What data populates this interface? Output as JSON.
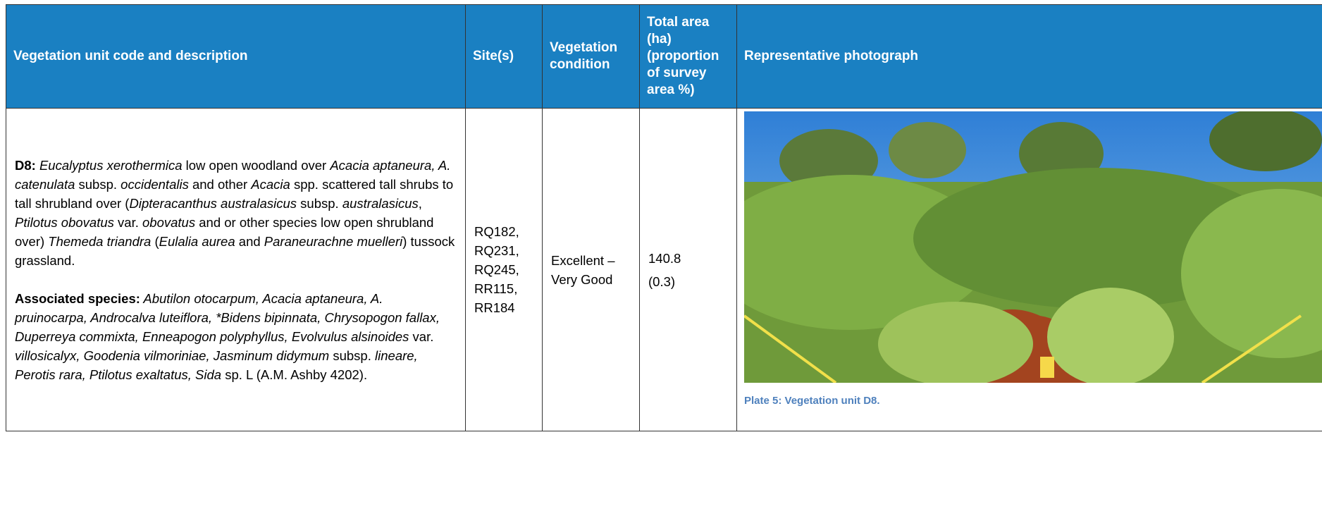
{
  "header": {
    "columns": [
      "Vegetation unit code and description",
      "Site(s)",
      "Vegetation condition",
      "Total area (ha) (proportion of survey area %)",
      "Representative photograph"
    ]
  },
  "row": {
    "description": [
      {
        "runs": [
          {
            "text": "D8:",
            "style": "bold"
          },
          {
            "text": " Eucalyptus xerothermica",
            "style": "italic"
          },
          {
            "text": " low open woodland over ",
            "style": "normal"
          },
          {
            "text": "Acacia aptaneura, A. catenulata",
            "style": "italic"
          },
          {
            "text": " subsp. ",
            "style": "normal"
          },
          {
            "text": "occidentalis",
            "style": "italic"
          },
          {
            "text": " and other ",
            "style": "normal"
          },
          {
            "text": "Acacia",
            "style": "italic"
          },
          {
            "text": " spp. scattered tall shrubs to tall shrubland over (",
            "style": "normal"
          },
          {
            "text": "Dipteracanthus australasicus",
            "style": "italic"
          },
          {
            "text": " subsp. ",
            "style": "normal"
          },
          {
            "text": "australasicus",
            "style": "italic"
          },
          {
            "text": ", ",
            "style": "normal"
          },
          {
            "text": "Ptilotus obovatus",
            "style": "italic"
          },
          {
            "text": " var. ",
            "style": "normal"
          },
          {
            "text": "obovatus",
            "style": "italic"
          },
          {
            "text": " and or other species low open shrubland over) ",
            "style": "normal"
          },
          {
            "text": "Themeda triandra",
            "style": "italic"
          },
          {
            "text": " (",
            "style": "normal"
          },
          {
            "text": "Eulalia aurea",
            "style": "italic"
          },
          {
            "text": " and ",
            "style": "normal"
          },
          {
            "text": "Paraneurachne muelleri",
            "style": "italic"
          },
          {
            "text": ") tussock grassland.",
            "style": "normal"
          }
        ]
      },
      {
        "runs": [
          {
            "text": "Associated species:",
            "style": "bold"
          },
          {
            "text": " Abutilon otocarpum, Acacia aptaneura, A. pruinocarpa, Androcalva luteiflora, *Bidens bipinnata, Chrysopogon fallax, Duperreya commixta, Enneapogon polyphyllus, Evolvulus alsinoides",
            "style": "italic"
          },
          {
            "text": " var. ",
            "style": "normal"
          },
          {
            "text": "villosicalyx, Goodenia vilmoriniae, Jasminum didymum",
            "style": "italic"
          },
          {
            "text": " subsp. ",
            "style": "normal"
          },
          {
            "text": "lineare, Perotis rara, Ptilotus exaltatus, Sida",
            "style": "italic"
          },
          {
            "text": " sp. L (A.M. Ashby 4202).",
            "style": "normal"
          }
        ]
      }
    ],
    "sites": [
      "RQ182,",
      "RQ231,",
      "RQ245,",
      "RR115,",
      "RR184"
    ],
    "condition": "Excellent – Very Good",
    "area": "140.8",
    "proportion": "(0.3)",
    "caption": "Plate 5: Vegetation unit D8."
  }
}
